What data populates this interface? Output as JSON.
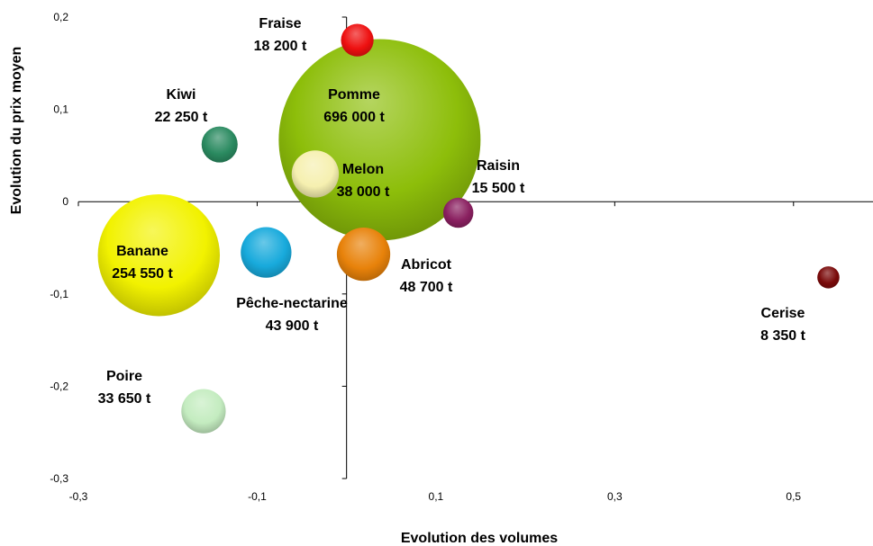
{
  "chart_data": {
    "type": "bubble",
    "xlabel": "Evolution des volumes",
    "ylabel": "Evolution du prix moyen",
    "xlim": [
      -0.3,
      0.6
    ],
    "ylim": [
      -0.3,
      0.2
    ],
    "x_ticks": [
      -0.3,
      -0.1,
      0.1,
      0.3,
      0.5
    ],
    "x_tick_labels": [
      "-0,3",
      "-0,1",
      "0,1",
      "0,3",
      "0,5"
    ],
    "y_ticks": [
      0.2,
      0.1,
      0,
      -0.1,
      -0.2,
      -0.3
    ],
    "y_tick_labels": [
      "0,2",
      "0,1",
      "0",
      "-0,1",
      "-0,2",
      "-0,3"
    ],
    "grid": false,
    "points": [
      {
        "name": "Pomme",
        "x": 0.037,
        "y": 0.067,
        "size_label": "696 000 t",
        "size": 696000,
        "color": "#8dbe0a"
      },
      {
        "name": "Banane",
        "x": -0.21,
        "y": -0.058,
        "size_label": "254 550 t",
        "size": 254550,
        "color": "#f2f200"
      },
      {
        "name": "Abricot",
        "x": 0.019,
        "y": -0.057,
        "size_label": "48 700 t",
        "size": 48700,
        "color": "#e8820a"
      },
      {
        "name": "Pêche-nectarine",
        "x": -0.09,
        "y": -0.055,
        "size_label": "43 900 t",
        "size": 43900,
        "color": "#18aadc"
      },
      {
        "name": "Melon",
        "x": -0.035,
        "y": 0.03,
        "size_label": "38 000 t",
        "size": 38000,
        "color": "#f6f0b0"
      },
      {
        "name": "Poire",
        "x": -0.16,
        "y": -0.227,
        "size_label": "33 650 t",
        "size": 33650,
        "color": "#c4ecc0"
      },
      {
        "name": "Kiwi",
        "x": -0.142,
        "y": 0.062,
        "size_label": "22 250 t",
        "size": 22250,
        "color": "#2a8a60"
      },
      {
        "name": "Fraise",
        "x": 0.012,
        "y": 0.175,
        "size_label": "18 200 t",
        "size": 18200,
        "color": "#ee1010"
      },
      {
        "name": "Raisin",
        "x": 0.125,
        "y": -0.012,
        "size_label": "15 500 t",
        "size": 15500,
        "color": "#8a2060"
      },
      {
        "name": "Cerise",
        "x": 0.539,
        "y": -0.082,
        "size_label": "8 350 t",
        "size": 8350,
        "color": "#7a0a0a"
      }
    ]
  }
}
